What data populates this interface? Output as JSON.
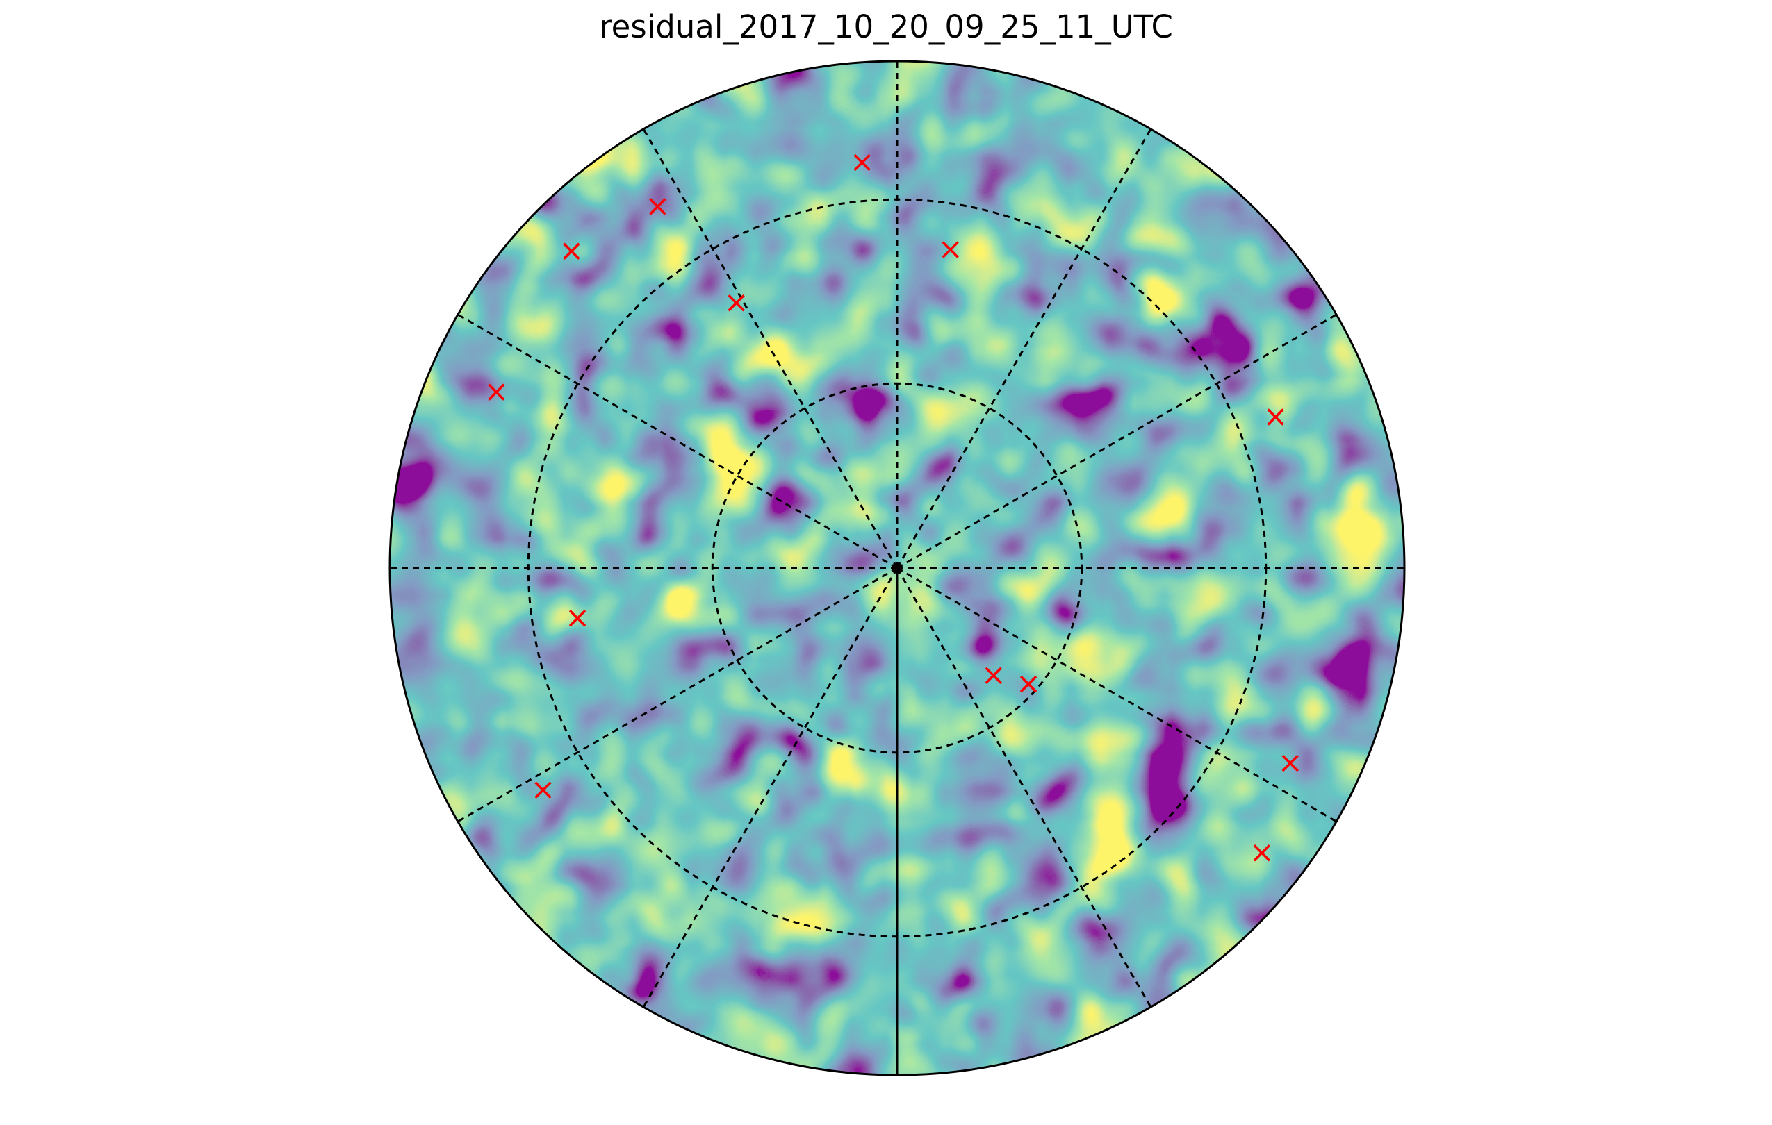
{
  "chart_data": {
    "type": "heatmap",
    "projection": "polar",
    "title": "residual_2017_10_20_09_25_11_UTC",
    "xlabel": "",
    "ylabel": "",
    "colormap": "viridis",
    "grid": true,
    "rings": [
      0.364,
      0.727
    ],
    "spokes_deg": [
      0,
      30,
      60,
      90,
      120,
      150,
      180,
      210,
      240,
      270,
      300,
      330
    ],
    "solid_spoke_deg": 270,
    "markers": {
      "symbol": "x",
      "color": "#ff0000",
      "points": [
        {
          "x": -0.069,
          "y": 0.8
        },
        {
          "x": 0.105,
          "y": 0.628
        },
        {
          "x": -0.472,
          "y": 0.713
        },
        {
          "x": -0.642,
          "y": 0.625
        },
        {
          "x": -0.317,
          "y": 0.523
        },
        {
          "x": -0.79,
          "y": 0.347
        },
        {
          "x": 0.746,
          "y": 0.298
        },
        {
          "x": -0.63,
          "y": -0.099
        },
        {
          "x": 0.19,
          "y": -0.212
        },
        {
          "x": 0.259,
          "y": -0.229
        },
        {
          "x": 0.775,
          "y": -0.385
        },
        {
          "x": -0.698,
          "y": -0.438
        },
        {
          "x": 0.719,
          "y": -0.562
        }
      ]
    },
    "center_marker": {
      "x": 0,
      "y": 0,
      "color": "#000000"
    }
  },
  "colors": {
    "background": "#ffffff",
    "grid_line": "#000000",
    "marker": "#ff0000",
    "viridis": [
      "#440154",
      "#3b528b",
      "#21918c",
      "#5ec962",
      "#fde725"
    ]
  }
}
